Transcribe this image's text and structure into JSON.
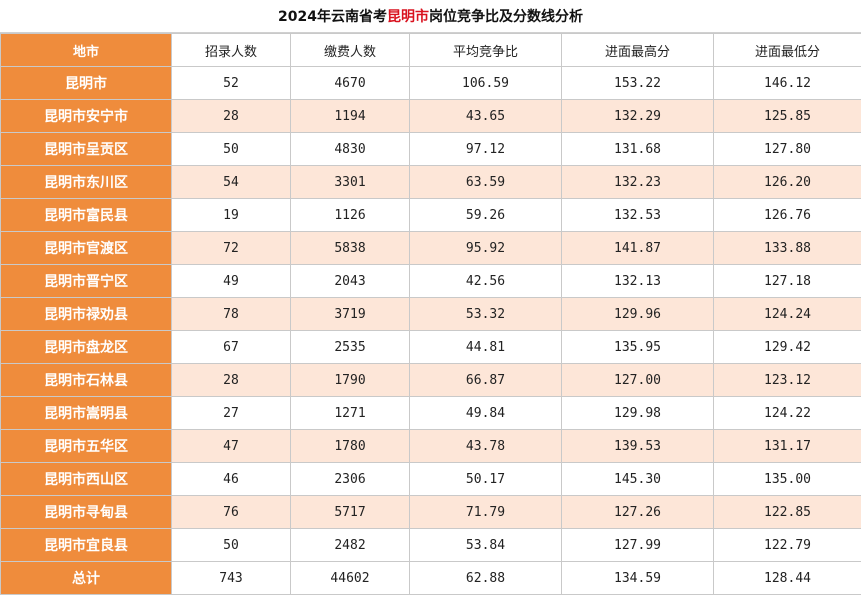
{
  "title": {
    "prefix": "2024年云南省考",
    "highlight": "昆明市",
    "suffix": "岗位竞争比及分数线分析"
  },
  "colors": {
    "accent_orange": "#ef8c3c",
    "stripe_peach": "#fde6d8",
    "title_highlight": "#d9121f"
  },
  "headers": [
    "地市",
    "招录人数",
    "缴费人数",
    "平均竞争比",
    "进面最高分",
    "进面最低分"
  ],
  "rows": [
    {
      "region": "昆明市",
      "recruit": "52",
      "paid": "4670",
      "ratio": "106.59",
      "max": "153.22",
      "min": "146.12"
    },
    {
      "region": "昆明市安宁市",
      "recruit": "28",
      "paid": "1194",
      "ratio": "43.65",
      "max": "132.29",
      "min": "125.85"
    },
    {
      "region": "昆明市呈贡区",
      "recruit": "50",
      "paid": "4830",
      "ratio": "97.12",
      "max": "131.68",
      "min": "127.80"
    },
    {
      "region": "昆明市东川区",
      "recruit": "54",
      "paid": "3301",
      "ratio": "63.59",
      "max": "132.23",
      "min": "126.20"
    },
    {
      "region": "昆明市富民县",
      "recruit": "19",
      "paid": "1126",
      "ratio": "59.26",
      "max": "132.53",
      "min": "126.76"
    },
    {
      "region": "昆明市官渡区",
      "recruit": "72",
      "paid": "5838",
      "ratio": "95.92",
      "max": "141.87",
      "min": "133.88"
    },
    {
      "region": "昆明市晋宁区",
      "recruit": "49",
      "paid": "2043",
      "ratio": "42.56",
      "max": "132.13",
      "min": "127.18"
    },
    {
      "region": "昆明市禄劝县",
      "recruit": "78",
      "paid": "3719",
      "ratio": "53.32",
      "max": "129.96",
      "min": "124.24"
    },
    {
      "region": "昆明市盘龙区",
      "recruit": "67",
      "paid": "2535",
      "ratio": "44.81",
      "max": "135.95",
      "min": "129.42"
    },
    {
      "region": "昆明市石林县",
      "recruit": "28",
      "paid": "1790",
      "ratio": "66.87",
      "max": "127.00",
      "min": "123.12"
    },
    {
      "region": "昆明市嵩明县",
      "recruit": "27",
      "paid": "1271",
      "ratio": "49.84",
      "max": "129.98",
      "min": "124.22"
    },
    {
      "region": "昆明市五华区",
      "recruit": "47",
      "paid": "1780",
      "ratio": "43.78",
      "max": "139.53",
      "min": "131.17"
    },
    {
      "region": "昆明市西山区",
      "recruit": "46",
      "paid": "2306",
      "ratio": "50.17",
      "max": "145.30",
      "min": "135.00"
    },
    {
      "region": "昆明市寻甸县",
      "recruit": "76",
      "paid": "5717",
      "ratio": "71.79",
      "max": "127.26",
      "min": "122.85"
    },
    {
      "region": "昆明市宜良县",
      "recruit": "50",
      "paid": "2482",
      "ratio": "53.84",
      "max": "127.99",
      "min": "122.79"
    }
  ],
  "total": {
    "region": "总计",
    "recruit": "743",
    "paid": "44602",
    "ratio": "62.88",
    "max": "134.59",
    "min": "128.44"
  }
}
